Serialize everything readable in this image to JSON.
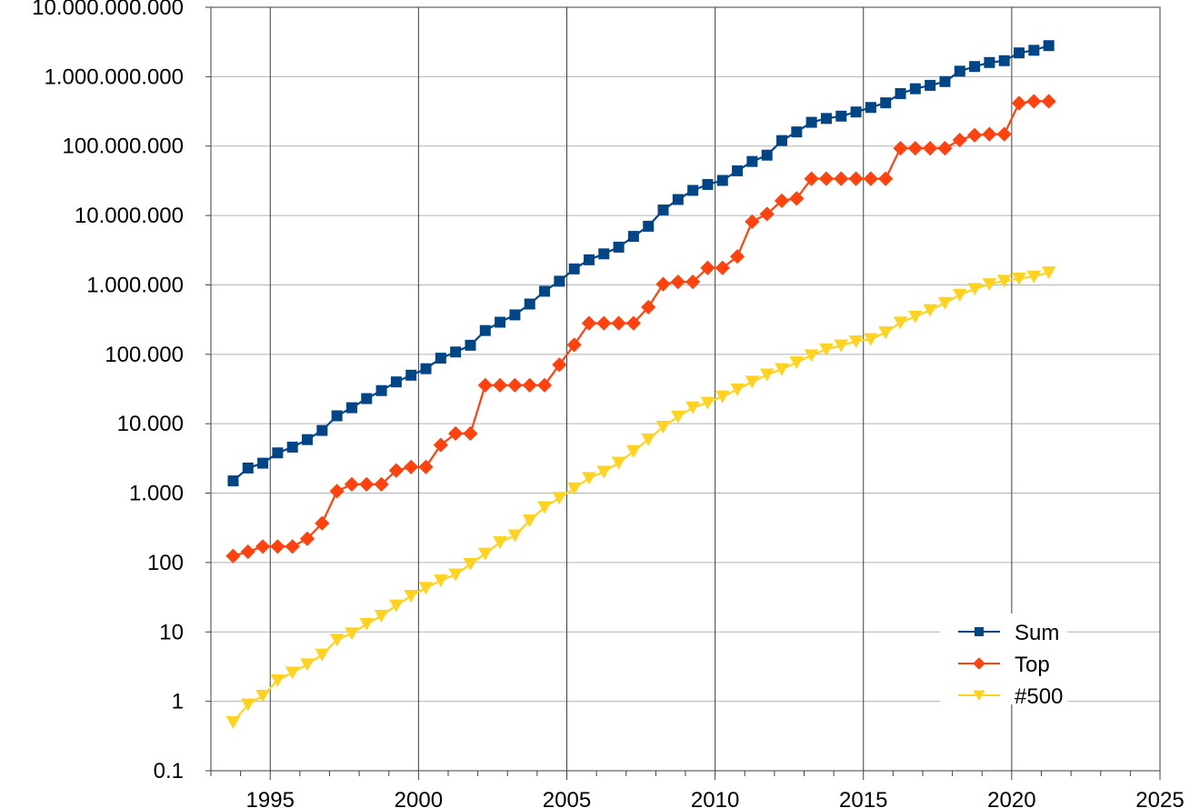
{
  "chart_data": {
    "type": "line",
    "title": "",
    "xlabel": "",
    "ylabel": "",
    "y_scale": "log",
    "xlim": [
      1993,
      2025
    ],
    "ylim": [
      0.1,
      10000000000
    ],
    "x_ticks": [
      1995,
      2000,
      2005,
      2010,
      2015,
      2020,
      2025
    ],
    "x_tick_labels": [
      "1995",
      "2000",
      "2005",
      "2010",
      "2015",
      "2020",
      "2025"
    ],
    "y_ticks": [
      0.1,
      1,
      10,
      100,
      1000,
      10000,
      100000,
      1000000,
      10000000,
      100000000,
      1000000000,
      10000000000
    ],
    "y_tick_labels": [
      "0.1",
      "1",
      "10",
      "100",
      "1.000",
      "10.000",
      "100.000",
      "1.000.000",
      "10.000.000",
      "100.000.000",
      "1.000.000.000",
      "10.000.000.000"
    ],
    "grid": true,
    "legend_position": "bottom-right",
    "series": [
      {
        "name": "Sum",
        "color": "#004586",
        "marker": "square",
        "x": [
          1993.75,
          1994.25,
          1994.75,
          1995.25,
          1995.75,
          1996.25,
          1996.75,
          1997.25,
          1997.75,
          1998.25,
          1998.75,
          1999.25,
          1999.75,
          2000.25,
          2000.75,
          2001.25,
          2001.75,
          2002.25,
          2002.75,
          2003.25,
          2003.75,
          2004.25,
          2004.75,
          2005.25,
          2005.75,
          2006.25,
          2006.75,
          2007.25,
          2007.75,
          2008.25,
          2008.75,
          2009.25,
          2009.75,
          2010.25,
          2010.75,
          2011.25,
          2011.75,
          2012.25,
          2012.75,
          2013.25,
          2013.75,
          2014.25,
          2014.75,
          2015.25,
          2015.75,
          2016.25,
          2016.75,
          2017.25,
          2017.75,
          2018.25,
          2018.75,
          2019.25,
          2019.75,
          2020.25,
          2020.75,
          2021.25
        ],
        "values": [
          1500,
          2300,
          2700,
          3800,
          4600,
          5900,
          8000,
          13000,
          17000,
          23000,
          30000,
          40000,
          50000,
          62000,
          88000,
          108000,
          135000,
          220000,
          290000,
          370000,
          530000,
          810000,
          1130000,
          1700000,
          2300000,
          2800000,
          3500000,
          5000000,
          7000000,
          12000000,
          17000000,
          23000000,
          28000000,
          32000000,
          44000000,
          60000000,
          74000000,
          120000000,
          160000000,
          220000000,
          250000000,
          270000000,
          310000000,
          360000000,
          420000000,
          570000000,
          670000000,
          750000000,
          850000000,
          1200000000,
          1400000000,
          1600000000,
          1700000000,
          2200000000,
          2400000000,
          2800000000
        ]
      },
      {
        "name": "Top",
        "color": "#ff420e",
        "marker": "diamond",
        "x": [
          1993.75,
          1994.25,
          1994.75,
          1995.25,
          1995.75,
          1996.25,
          1996.75,
          1997.25,
          1997.75,
          1998.25,
          1998.75,
          1999.25,
          1999.75,
          2000.25,
          2000.75,
          2001.25,
          2001.75,
          2002.25,
          2002.75,
          2003.25,
          2003.75,
          2004.25,
          2004.75,
          2005.25,
          2005.75,
          2006.25,
          2006.75,
          2007.25,
          2007.75,
          2008.25,
          2008.75,
          2009.25,
          2009.75,
          2010.25,
          2010.75,
          2011.25,
          2011.75,
          2012.25,
          2012.75,
          2013.25,
          2013.75,
          2014.25,
          2014.75,
          2015.25,
          2015.75,
          2016.25,
          2016.75,
          2017.25,
          2017.75,
          2018.25,
          2018.75,
          2019.25,
          2019.75,
          2020.25,
          2020.75,
          2021.25
        ],
        "values": [
          124,
          143,
          170,
          170,
          170,
          220,
          368,
          1068,
          1338,
          1338,
          1338,
          2121,
          2379,
          2379,
          4938,
          7226,
          7226,
          35860,
          35860,
          35860,
          35860,
          35860,
          70720,
          136800,
          280600,
          280600,
          280600,
          280600,
          478200,
          1026000,
          1105000,
          1105000,
          1759000,
          1759000,
          2566000,
          8162000,
          10510000,
          16320000,
          17590000,
          33860000,
          33860000,
          33860000,
          33860000,
          33860000,
          33860000,
          93010000,
          93010000,
          93010000,
          93010000,
          122300000,
          143500000,
          148600000,
          148600000,
          415500000,
          442000000,
          442000000
        ]
      },
      {
        "name": "#500",
        "color": "#ffd320",
        "marker": "triangle-down",
        "x": [
          1993.75,
          1994.25,
          1994.75,
          1995.25,
          1995.75,
          1996.25,
          1996.75,
          1997.25,
          1997.75,
          1998.25,
          1998.75,
          1999.25,
          1999.75,
          2000.25,
          2000.75,
          2001.25,
          2001.75,
          2002.25,
          2002.75,
          2003.25,
          2003.75,
          2004.25,
          2004.75,
          2005.25,
          2005.75,
          2006.25,
          2006.75,
          2007.25,
          2007.75,
          2008.25,
          2008.75,
          2009.25,
          2009.75,
          2010.25,
          2010.75,
          2011.25,
          2011.75,
          2012.25,
          2012.75,
          2013.25,
          2013.75,
          2014.25,
          2014.75,
          2015.25,
          2015.75,
          2016.25,
          2016.75,
          2017.25,
          2017.75,
          2018.25,
          2018.75,
          2019.25,
          2019.75,
          2020.25,
          2020.75,
          2021.25
        ],
        "values": [
          0.5,
          0.9,
          1.2,
          2.0,
          2.6,
          3.4,
          4.7,
          7.7,
          9.5,
          13,
          17,
          24,
          33,
          43,
          55,
          67,
          95,
          134,
          196,
          245,
          403,
          625,
          851,
          1167,
          1646,
          2026,
          2736,
          4005,
          5929,
          9000,
          12640,
          17090,
          20050,
          24670,
          31120,
          40190,
          50940,
          60820,
          76500,
          96620,
          117800,
          133700,
          153400,
          164600,
          206400,
          286100,
          349300,
          432200,
          548700,
          715600,
          874800,
          1022000,
          1142000,
          1230000,
          1316000,
          1511000
        ]
      }
    ]
  }
}
